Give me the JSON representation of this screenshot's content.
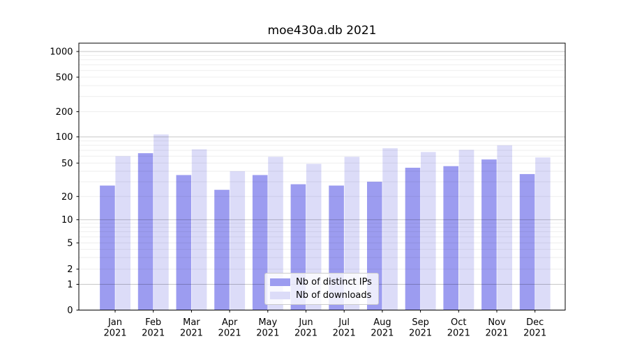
{
  "chart_data": {
    "type": "bar",
    "title": "moe430a.db 2021",
    "x_tick_year": "2021",
    "categories": [
      "Jan",
      "Feb",
      "Mar",
      "Apr",
      "May",
      "Jun",
      "Jul",
      "Aug",
      "Sep",
      "Oct",
      "Nov",
      "Dec"
    ],
    "series": [
      {
        "name": "Nb of distinct IPs",
        "color": "#9c9cf0",
        "values": [
          27,
          65,
          36,
          24,
          36,
          28,
          27,
          30,
          44,
          46,
          55,
          37
        ]
      },
      {
        "name": "Nb of downloads",
        "color": "#dcdcf8",
        "values": [
          60,
          107,
          72,
          40,
          59,
          49,
          59,
          74,
          67,
          71,
          80,
          58
        ]
      }
    ],
    "yticks": [
      0,
      1,
      2,
      5,
      10,
      20,
      50,
      100,
      200,
      500,
      1000
    ],
    "ylim": [
      0,
      1100
    ],
    "yscale": "symlog",
    "grid": true,
    "legend_position": "lower center"
  },
  "colors": {
    "minor_grid": "rgba(0,0,0,0.065)",
    "major_grid": "rgba(0,0,0,0.22)",
    "spine": "#000000",
    "text": "#000000",
    "legend_border": "#cccccc"
  }
}
